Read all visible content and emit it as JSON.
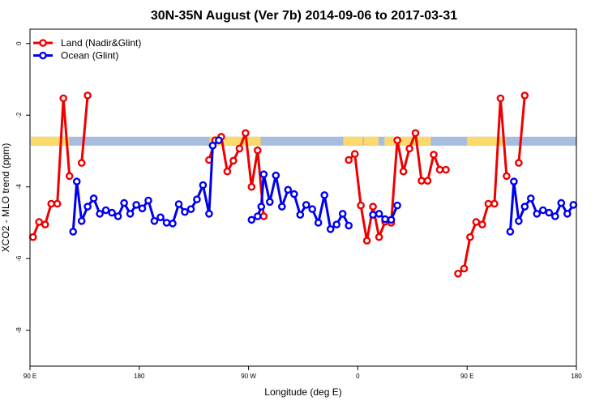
{
  "chart_data": {
    "type": "line",
    "title": "30N-35N August (Ver 7b)   2014-09-06 to 2017-03-31",
    "xlabel": "Longitude (deg E)",
    "ylabel": "XCO2 - MLO trend (ppm)",
    "xlim": [
      90,
      540
    ],
    "ylim": [
      -9,
      0.4
    ],
    "x_ticks": [
      {
        "value": 90,
        "label": "90 E"
      },
      {
        "value": 180,
        "label": "180"
      },
      {
        "value": 270,
        "label": "90 W"
      },
      {
        "value": 360,
        "label": "0"
      },
      {
        "value": 450,
        "label": "90 E"
      },
      {
        "value": 540,
        "label": "180"
      }
    ],
    "y_ticks": [
      {
        "value": 0,
        "label": "0"
      },
      {
        "value": -2,
        "label": "-2"
      },
      {
        "value": -4,
        "label": "-4"
      },
      {
        "value": -6,
        "label": "-6"
      },
      {
        "value": -8,
        "label": "-8"
      }
    ],
    "legend": {
      "position": "top-left"
    },
    "band": {
      "ymin": -2.85,
      "ymax": -2.6,
      "land_color": "#FBD96B",
      "ocean_color": "#A7BCDF",
      "land_ranges": [
        [
          90,
          122
        ],
        [
          238,
          280
        ],
        [
          348,
          364
        ],
        [
          365,
          377
        ],
        [
          382,
          420
        ],
        [
          450,
          482
        ],
        [
          553,
          577
        ]
      ]
    },
    "series": [
      {
        "name": "Land (Nadir&Glint)",
        "color": "#EE0000",
        "segments": [
          [
            [
              92.5,
              -5.4
            ],
            [
              97.5,
              -4.98
            ],
            [
              102.5,
              -5.05
            ],
            [
              107.5,
              -4.47
            ],
            [
              112.5,
              -4.47
            ],
            [
              117.5,
              -1.53
            ],
            [
              122.5,
              -3.7
            ]
          ],
          [
            [
              132.5,
              -3.33
            ],
            [
              137.5,
              -1.45
            ]
          ],
          [
            [
              237.5,
              -3.25
            ],
            [
              242.5,
              -2.7
            ],
            [
              247.5,
              -2.6
            ],
            [
              252.5,
              -3.57
            ],
            [
              257.5,
              -3.27
            ],
            [
              262.5,
              -2.93
            ],
            [
              267.5,
              -2.5
            ],
            [
              272.5,
              -4.0
            ],
            [
              277.5,
              -2.98
            ],
            [
              282.5,
              -4.82
            ]
          ],
          [
            [
              352.5,
              -3.25
            ],
            [
              357.5,
              -3.08
            ],
            [
              362.5,
              -4.52
            ],
            [
              367.5,
              -5.5
            ],
            [
              372.5,
              -4.55
            ],
            [
              377.5,
              -5.4
            ],
            [
              382.5,
              -4.97
            ],
            [
              387.5,
              -5.0
            ],
            [
              392.5,
              -2.7
            ],
            [
              397.5,
              -3.57
            ],
            [
              402.5,
              -2.93
            ],
            [
              407.5,
              -2.5
            ],
            [
              412.5,
              -3.83
            ],
            [
              417.5,
              -3.83
            ],
            [
              422.5,
              -3.1
            ],
            [
              427.5,
              -3.52
            ],
            [
              432.5,
              -3.52
            ]
          ],
          [
            [
              442.5,
              -6.42
            ],
            [
              447.5,
              -6.28
            ],
            [
              452.5,
              -5.4
            ],
            [
              457.5,
              -4.98
            ],
            [
              462.5,
              -5.05
            ],
            [
              467.5,
              -4.47
            ],
            [
              472.5,
              -4.47
            ],
            [
              477.5,
              -1.53
            ],
            [
              482.5,
              -3.7
            ]
          ],
          [
            [
              492.5,
              -3.33
            ],
            [
              497.5,
              -1.45
            ]
          ]
        ]
      },
      {
        "name": "Ocean (Glint)",
        "color": "#0000EE",
        "segments": [
          [
            [
              125.5,
              -5.25
            ],
            [
              128.5,
              -3.85
            ],
            [
              132.5,
              -4.95
            ],
            [
              137.5,
              -4.55
            ],
            [
              142.5,
              -4.32
            ],
            [
              147.5,
              -4.75
            ],
            [
              152.5,
              -4.65
            ],
            [
              157.5,
              -4.72
            ],
            [
              162.5,
              -4.82
            ],
            [
              167.5,
              -4.45
            ],
            [
              172.5,
              -4.75
            ],
            [
              177.5,
              -4.5
            ],
            [
              182.5,
              -4.6
            ],
            [
              187.5,
              -4.38
            ],
            [
              192.5,
              -4.95
            ],
            [
              197.5,
              -4.85
            ],
            [
              202.5,
              -5.0
            ],
            [
              207.5,
              -5.02
            ],
            [
              212.5,
              -4.48
            ],
            [
              217.5,
              -4.7
            ],
            [
              222.5,
              -4.62
            ],
            [
              227.5,
              -4.35
            ],
            [
              232.5,
              -3.95
            ],
            [
              237.5,
              -4.75
            ],
            [
              240.5,
              -2.85
            ],
            [
              245.5,
              -2.7
            ]
          ],
          [
            [
              272.5,
              -4.92
            ],
            [
              277.5,
              -4.82
            ],
            [
              280.5,
              -4.55
            ],
            [
              282.5,
              -3.65
            ],
            [
              287.5,
              -4.42
            ],
            [
              292.5,
              -3.68
            ],
            [
              297.5,
              -4.55
            ],
            [
              302.5,
              -4.08
            ],
            [
              307.5,
              -4.2
            ],
            [
              312.5,
              -4.78
            ],
            [
              317.5,
              -4.5
            ],
            [
              322.5,
              -4.62
            ],
            [
              327.5,
              -5.0
            ],
            [
              332.5,
              -4.23
            ],
            [
              337.5,
              -5.18
            ],
            [
              342.5,
              -5.05
            ],
            [
              347.5,
              -4.75
            ],
            [
              352.5,
              -5.08
            ]
          ],
          [
            [
              372.5,
              -4.78
            ],
            [
              377.5,
              -4.75
            ],
            [
              382.5,
              -4.9
            ],
            [
              387.5,
              -4.92
            ],
            [
              392.5,
              -4.52
            ]
          ],
          [
            [
              485.5,
              -5.25
            ],
            [
              488.5,
              -3.85
            ],
            [
              492.5,
              -4.95
            ],
            [
              497.5,
              -4.55
            ],
            [
              502.5,
              -4.32
            ],
            [
              507.5,
              -4.75
            ],
            [
              512.5,
              -4.65
            ],
            [
              517.5,
              -4.72
            ],
            [
              522.5,
              -4.82
            ],
            [
              527.5,
              -4.45
            ],
            [
              532.5,
              -4.75
            ],
            [
              537.5,
              -4.5
            ]
          ]
        ]
      }
    ]
  }
}
